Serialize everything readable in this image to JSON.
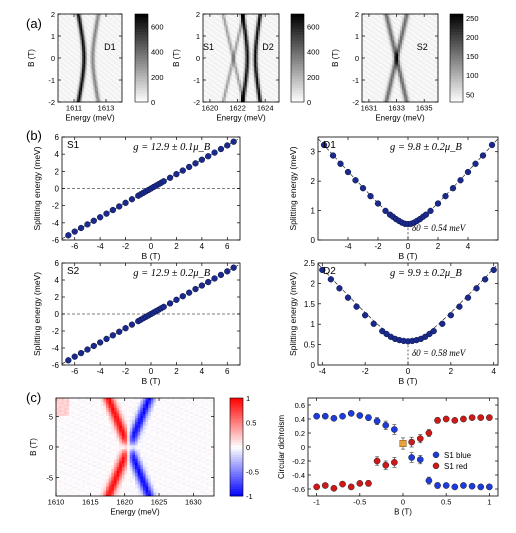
{
  "section_labels": [
    "(a)",
    "(b)",
    "(c)"
  ],
  "colors": {
    "marker": "#1a2a8c",
    "marker_edge": "#0a1040",
    "blue": "#1e3cdc",
    "red": "#d01818",
    "orange": "#e8a23c"
  },
  "chart_data": [
    {
      "id": "a1",
      "type": "heatmap",
      "label": "D1",
      "xlabel": "Energy (meV)",
      "ylabel": "B (T)",
      "xlim": [
        1610,
        1614
      ],
      "ylim": [
        -2,
        2
      ],
      "xticks": [
        1611,
        1613
      ],
      "yticks": [
        -2,
        -1,
        0,
        1,
        2
      ],
      "colorbar_ticks": [
        0,
        200,
        400,
        600
      ],
      "colorbar_range": [
        0,
        700
      ],
      "lines": [
        {
          "label": "D1 lower branch",
          "center": 1611.9,
          "d0": 0.54,
          "g": 9.8,
          "strength": 0.95,
          "width": 0.09
        },
        {
          "label": "D1 upper branch",
          "center": 1611.9,
          "d0": 0.54,
          "g": 9.8,
          "strength": 0.45,
          "width": 0.09,
          "sign": 1
        }
      ]
    },
    {
      "id": "a2",
      "type": "heatmap",
      "labels": [
        "S1",
        "D2"
      ],
      "xlabel": "Energy (meV)",
      "ylabel": "B (T)",
      "xlim": [
        1619.5,
        1625
      ],
      "ylim": [
        -2,
        2
      ],
      "xticks": [
        1620,
        1622,
        1624
      ],
      "yticks": [
        -2,
        -1,
        0,
        1,
        2
      ],
      "colorbar_ticks": [
        0,
        200,
        400,
        600
      ],
      "colorbar_range": [
        0,
        700
      ],
      "lines": [
        {
          "label": "S1",
          "type": "X",
          "center": 1621.7,
          "g": 12.9,
          "strength": 0.35,
          "width": 0.08
        },
        {
          "label": "D2",
          "type": "anticrossing",
          "center": 1623.0,
          "d0": 0.58,
          "g": 9.9,
          "strength": 0.95,
          "width": 0.1
        }
      ]
    },
    {
      "id": "a3",
      "type": "heatmap",
      "label": "S2",
      "xlabel": "Energy (meV)",
      "ylabel": "B (T)",
      "xlim": [
        1630.5,
        1636
      ],
      "ylim": [
        -2,
        2
      ],
      "xticks": [
        1631,
        1633,
        1635
      ],
      "yticks": [
        -2,
        -1,
        0,
        1,
        2
      ],
      "colorbar_ticks": [
        50,
        100,
        150,
        200,
        250
      ],
      "colorbar_range": [
        30,
        260
      ],
      "lines": [
        {
          "label": "S2",
          "type": "X",
          "center": 1633.0,
          "g": 12.9,
          "strength": 0.55,
          "width": 0.12
        }
      ]
    },
    {
      "id": "b1",
      "type": "scatter",
      "label": "S1",
      "annotation": "g = 12.9 ± 0.1μ_B",
      "xlabel": "B (T)",
      "ylabel": "Splitting energy (meV)",
      "xlim": [
        -7,
        7
      ],
      "ylim": [
        -6,
        6
      ],
      "xticks": [
        -6,
        -4,
        -2,
        0,
        2,
        4,
        6
      ],
      "yticks": [
        -6,
        -4,
        -2,
        0,
        2,
        4,
        6
      ],
      "zero_line": true,
      "x": [
        -6.5,
        -6,
        -5.5,
        -5,
        -4.5,
        -4,
        -3.5,
        -3,
        -2.5,
        -2,
        -1.5,
        -1,
        -0.8,
        -0.6,
        -0.4,
        -0.2,
        0,
        0.2,
        0.4,
        0.6,
        0.8,
        1,
        1.5,
        2,
        2.5,
        3,
        3.5,
        4,
        4.5,
        5,
        5.5,
        6,
        6.5
      ],
      "y": [
        -5.45,
        -5.02,
        -4.6,
        -4.18,
        -3.76,
        -3.35,
        -2.93,
        -2.51,
        -2.09,
        -1.67,
        -1.25,
        -0.84,
        -0.67,
        -0.5,
        -0.33,
        -0.17,
        0,
        0.17,
        0.33,
        0.5,
        0.67,
        0.84,
        1.25,
        1.67,
        2.09,
        2.51,
        2.93,
        3.35,
        3.76,
        4.18,
        4.6,
        5.02,
        5.45
      ],
      "fit_line": {
        "x": [
          -7,
          7
        ],
        "y": [
          -5.86,
          5.86
        ]
      }
    },
    {
      "id": "b2",
      "type": "scatter",
      "label": "D1",
      "annotation": "g = 9.8 ± 0.2μ_B",
      "delta_annotation": "δ0 = 0.54 meV",
      "xlabel": "B (T)",
      "ylabel": "Splitting energy (meV)",
      "xlim": [
        -6,
        6
      ],
      "ylim": [
        0,
        3.5
      ],
      "xticks": [
        -4,
        -2,
        0,
        2,
        4
      ],
      "yticks": [
        0,
        1,
        2,
        3
      ],
      "x": [
        -5.6,
        -5,
        -4.5,
        -4,
        -3.5,
        -3,
        -2.5,
        -2,
        -1.5,
        -1.2,
        -1,
        -0.8,
        -0.6,
        -0.4,
        -0.2,
        0,
        0.2,
        0.4,
        0.6,
        0.8,
        1,
        1.2,
        1.5,
        2,
        2.5,
        3,
        3.5,
        4,
        4.5,
        5,
        5.6
      ],
      "y": [
        3.23,
        2.87,
        2.59,
        2.31,
        2.03,
        1.76,
        1.49,
        1.24,
        0.99,
        0.86,
        0.79,
        0.71,
        0.65,
        0.59,
        0.55,
        0.54,
        0.55,
        0.59,
        0.65,
        0.71,
        0.79,
        0.86,
        0.99,
        1.24,
        1.49,
        1.76,
        2.03,
        2.31,
        2.59,
        2.87,
        3.23
      ],
      "fit": {
        "g": 9.8,
        "d0": 0.54
      }
    },
    {
      "id": "b3",
      "type": "scatter",
      "label": "S2",
      "annotation": "g = 12.9 ± 0.2μ_B",
      "xlabel": "B (T)",
      "ylabel": "Splitting energy (meV)",
      "xlim": [
        -7,
        7
      ],
      "ylim": [
        -6,
        6
      ],
      "xticks": [
        -6,
        -4,
        -2,
        0,
        2,
        4,
        6
      ],
      "yticks": [
        -6,
        -4,
        -2,
        0,
        2,
        4,
        6
      ],
      "zero_line": true,
      "x": [
        -6.5,
        -6,
        -5.5,
        -5,
        -4.5,
        -4,
        -3.5,
        -3,
        -2.5,
        -2,
        -1.5,
        -1,
        -0.8,
        -0.6,
        -0.4,
        -0.2,
        0,
        0.2,
        0.4,
        0.6,
        0.8,
        1,
        1.5,
        2,
        2.5,
        3,
        3.5,
        4,
        4.5,
        5,
        5.5,
        6,
        6.5
      ],
      "y": [
        -5.45,
        -5.02,
        -4.6,
        -4.18,
        -3.76,
        -3.35,
        -2.93,
        -2.51,
        -2.09,
        -1.67,
        -1.25,
        -0.84,
        -0.67,
        -0.5,
        -0.33,
        -0.17,
        0,
        0.17,
        0.33,
        0.5,
        0.67,
        0.84,
        1.25,
        1.67,
        2.09,
        2.51,
        2.93,
        3.35,
        3.76,
        4.18,
        4.6,
        5.02,
        5.45
      ],
      "fit_line": {
        "x": [
          -7,
          7
        ],
        "y": [
          -5.86,
          5.86
        ]
      }
    },
    {
      "id": "b4",
      "type": "scatter",
      "label": "D2",
      "annotation": "g = 9.9 ± 0.2μ_B",
      "delta_annotation": "δ0 = 0.58 meV",
      "xlabel": "B (T)",
      "ylabel": "Splitting energy (meV)",
      "xlim": [
        -4.2,
        4.2
      ],
      "ylim": [
        0,
        2.5
      ],
      "xticks": [
        -4,
        -2,
        0,
        2,
        4
      ],
      "yticks": [
        0,
        0.5,
        1,
        1.5,
        2,
        2.5
      ],
      "x": [
        -4,
        -3.6,
        -3.2,
        -2.8,
        -2.4,
        -2,
        -1.6,
        -1.2,
        -1,
        -0.8,
        -0.6,
        -0.4,
        -0.2,
        0,
        0.2,
        0.4,
        0.6,
        0.8,
        1,
        1.2,
        1.6,
        2,
        2.4,
        2.8,
        3.2,
        3.6,
        4
      ],
      "y": [
        2.33,
        2.1,
        1.88,
        1.65,
        1.43,
        1.22,
        1.01,
        0.83,
        0.76,
        0.69,
        0.64,
        0.61,
        0.59,
        0.58,
        0.59,
        0.61,
        0.64,
        0.69,
        0.76,
        0.83,
        1.01,
        1.22,
        1.43,
        1.65,
        1.88,
        2.1,
        2.33
      ],
      "fit": {
        "g": 9.9,
        "d0": 0.58
      }
    },
    {
      "id": "c1",
      "type": "heatmap",
      "xlabel": "Energy (meV)",
      "ylabel": "B (T)",
      "xlim": [
        1610,
        1633
      ],
      "ylim": [
        -8,
        8
      ],
      "xticks": [
        1610,
        1615,
        1620,
        1625,
        1630
      ],
      "yticks": [
        -5,
        0,
        5
      ],
      "colorbar_ticks": [
        -1,
        -0.5,
        0,
        0.5,
        1
      ],
      "colorbar_range": [
        -1,
        1
      ],
      "lines": [
        {
          "label": "S1 red branch",
          "center": 1620.6,
          "g": 12.9,
          "sign": -1,
          "polarity": 1
        },
        {
          "label": "S1 blue branch",
          "center": 1620.6,
          "g": 12.9,
          "sign": 1,
          "polarity": -1
        }
      ]
    },
    {
      "id": "c2",
      "type": "scatter",
      "xlabel": "B (T)",
      "ylabel": "Circular dichroism",
      "xlim": [
        -1.1,
        1.1
      ],
      "ylim": [
        -0.7,
        0.7
      ],
      "xticks": [
        -1,
        -0.5,
        0,
        0.5,
        1
      ],
      "yticks": [
        -0.6,
        -0.4,
        -0.2,
        0,
        0.2,
        0.4,
        0.6
      ],
      "series": [
        {
          "name": "S1 blue",
          "color": "#1e3cdc",
          "x": [
            -1,
            -0.9,
            -0.8,
            -0.7,
            -0.6,
            -0.5,
            -0.4,
            -0.3,
            -0.2,
            -0.1,
            0.1,
            0.2,
            0.3,
            0.4,
            0.5,
            0.6,
            0.7,
            0.8,
            0.9,
            1
          ],
          "y": [
            0.44,
            0.44,
            0.41,
            0.44,
            0.48,
            0.45,
            0.42,
            0.37,
            0.31,
            0.25,
            -0.15,
            -0.18,
            -0.48,
            -0.55,
            -0.55,
            -0.57,
            -0.55,
            -0.56,
            -0.57,
            -0.57
          ],
          "err": [
            0.03,
            0.03,
            0.03,
            0.03,
            0.03,
            0.03,
            0.04,
            0.05,
            0.06,
            0.07,
            0.07,
            0.06,
            0.05,
            0.04,
            0.03,
            0.03,
            0.03,
            0.03,
            0.03,
            0.03
          ]
        },
        {
          "name": "S1 red",
          "color": "#d01818",
          "x": [
            -1,
            -0.9,
            -0.8,
            -0.7,
            -0.6,
            -0.5,
            -0.4,
            -0.3,
            -0.2,
            -0.1,
            0.1,
            0.2,
            0.3,
            0.4,
            0.5,
            0.6,
            0.7,
            0.8,
            0.9,
            1
          ],
          "y": [
            -0.57,
            -0.55,
            -0.59,
            -0.53,
            -0.57,
            -0.52,
            -0.52,
            -0.2,
            -0.26,
            -0.22,
            0.07,
            0.12,
            0.2,
            0.38,
            0.4,
            0.38,
            0.4,
            0.42,
            0.42,
            0.42
          ],
          "err": [
            0.03,
            0.03,
            0.03,
            0.03,
            0.03,
            0.03,
            0.04,
            0.06,
            0.06,
            0.07,
            0.07,
            0.06,
            0.05,
            0.04,
            0.03,
            0.03,
            0.03,
            0.03,
            0.03,
            0.03
          ]
        },
        {
          "name": "",
          "color": "#e8a23c",
          "x": [
            0
          ],
          "y": [
            0.05
          ],
          "err": [
            0.08
          ],
          "marker": "square"
        }
      ],
      "legend": {
        "position": "right",
        "entries": [
          "S1 blue",
          "S1 red"
        ]
      }
    }
  ]
}
